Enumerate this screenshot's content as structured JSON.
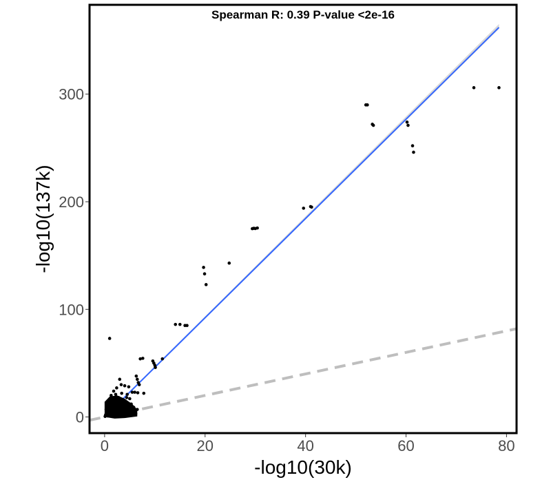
{
  "chart_data": {
    "type": "scatter",
    "title": "Spearman R: 0.39 P-value <2e-16",
    "xlabel": "-log10(30k)",
    "ylabel": "-log10(137k)",
    "xlim": [
      -3,
      82
    ],
    "ylim": [
      -15,
      383
    ],
    "xticks": [
      "0",
      "20",
      "40",
      "60",
      "80"
    ],
    "yticks": [
      "0",
      "100",
      "200",
      "300"
    ],
    "grid": false,
    "reference_line": {
      "style": "dashed",
      "color": "#bebebe",
      "x0": -3,
      "y0": -3,
      "x1": 82,
      "y1": 82
    },
    "regression_line": {
      "color": "#3366ff",
      "band_color": "#c8c8c8",
      "x0": 0,
      "y0": 0,
      "x1": 78.5,
      "y1": 362
    },
    "points": [
      [
        73.5,
        306
      ],
      [
        78.5,
        306
      ],
      [
        52,
        290
      ],
      [
        52.3,
        290
      ],
      [
        53.3,
        272
      ],
      [
        53.5,
        271
      ],
      [
        60.2,
        274
      ],
      [
        60.4,
        271
      ],
      [
        61.3,
        252
      ],
      [
        61.5,
        246
      ],
      [
        39.6,
        194
      ],
      [
        41.0,
        195.5
      ],
      [
        41.2,
        195
      ],
      [
        29.4,
        175
      ],
      [
        29.7,
        175.3
      ],
      [
        30.0,
        175.1
      ],
      [
        30.4,
        175.6
      ],
      [
        24.8,
        143
      ],
      [
        19.7,
        139
      ],
      [
        19.9,
        133
      ],
      [
        20.2,
        123
      ],
      [
        14.1,
        86
      ],
      [
        15.0,
        86
      ],
      [
        16.0,
        85
      ],
      [
        16.4,
        85
      ],
      [
        1.0,
        73
      ],
      [
        7.1,
        54
      ],
      [
        7.6,
        54.5
      ],
      [
        11.5,
        54
      ],
      [
        9.6,
        52
      ],
      [
        9.8,
        50
      ],
      [
        10.0,
        48
      ],
      [
        10.1,
        46
      ],
      [
        6.3,
        38
      ],
      [
        6.5,
        35
      ],
      [
        6.7,
        32
      ],
      [
        6.9,
        30
      ],
      [
        5.5,
        23
      ],
      [
        6.0,
        23
      ],
      [
        6.6,
        22.5
      ],
      [
        7.8,
        22
      ],
      [
        3.0,
        35
      ],
      [
        3.3,
        30
      ],
      [
        2.4,
        27
      ],
      [
        4.0,
        29
      ],
      [
        4.8,
        28
      ],
      [
        1.8,
        24
      ],
      [
        2.2,
        21
      ],
      [
        3.4,
        22
      ],
      [
        1.3,
        20
      ],
      [
        2.8,
        18
      ],
      [
        4.5,
        21
      ],
      [
        5.0,
        17
      ],
      [
        3.8,
        15
      ],
      [
        0.9,
        16
      ],
      [
        1.6,
        13
      ],
      [
        2.5,
        12
      ],
      [
        3.2,
        11
      ],
      [
        4.2,
        10
      ],
      [
        5.3,
        12
      ],
      [
        0.5,
        10
      ],
      [
        1.1,
        9
      ],
      [
        1.9,
        8
      ],
      [
        2.7,
        7
      ],
      [
        3.6,
        6
      ],
      [
        4.6,
        5
      ],
      [
        0.3,
        7
      ],
      [
        0.8,
        5
      ],
      [
        1.4,
        4
      ],
      [
        2.1,
        3
      ],
      [
        3.0,
        2
      ],
      [
        3.9,
        3
      ],
      [
        4.9,
        2
      ],
      [
        5.6,
        4
      ],
      [
        6.2,
        3
      ],
      [
        0.2,
        2
      ],
      [
        0.6,
        1
      ],
      [
        1.2,
        1.5
      ],
      [
        1.7,
        2.5
      ],
      [
        2.3,
        1
      ],
      [
        2.9,
        4
      ],
      [
        3.5,
        1.5
      ],
      [
        4.3,
        0.8
      ],
      [
        0.1,
        0.5
      ],
      [
        0.4,
        3.5
      ],
      [
        1.0,
        6
      ],
      [
        1.5,
        11
      ],
      [
        2.0,
        15
      ],
      [
        2.6,
        16
      ],
      [
        3.7,
        13
      ],
      [
        4.4,
        18
      ],
      [
        0.7,
        14
      ],
      [
        1.3,
        17
      ],
      [
        5.8,
        9
      ],
      [
        6.5,
        7
      ],
      [
        5.2,
        6.5
      ]
    ],
    "cluster": {
      "description_free": true,
      "x_max": 6.5,
      "y_max": 20
    }
  }
}
